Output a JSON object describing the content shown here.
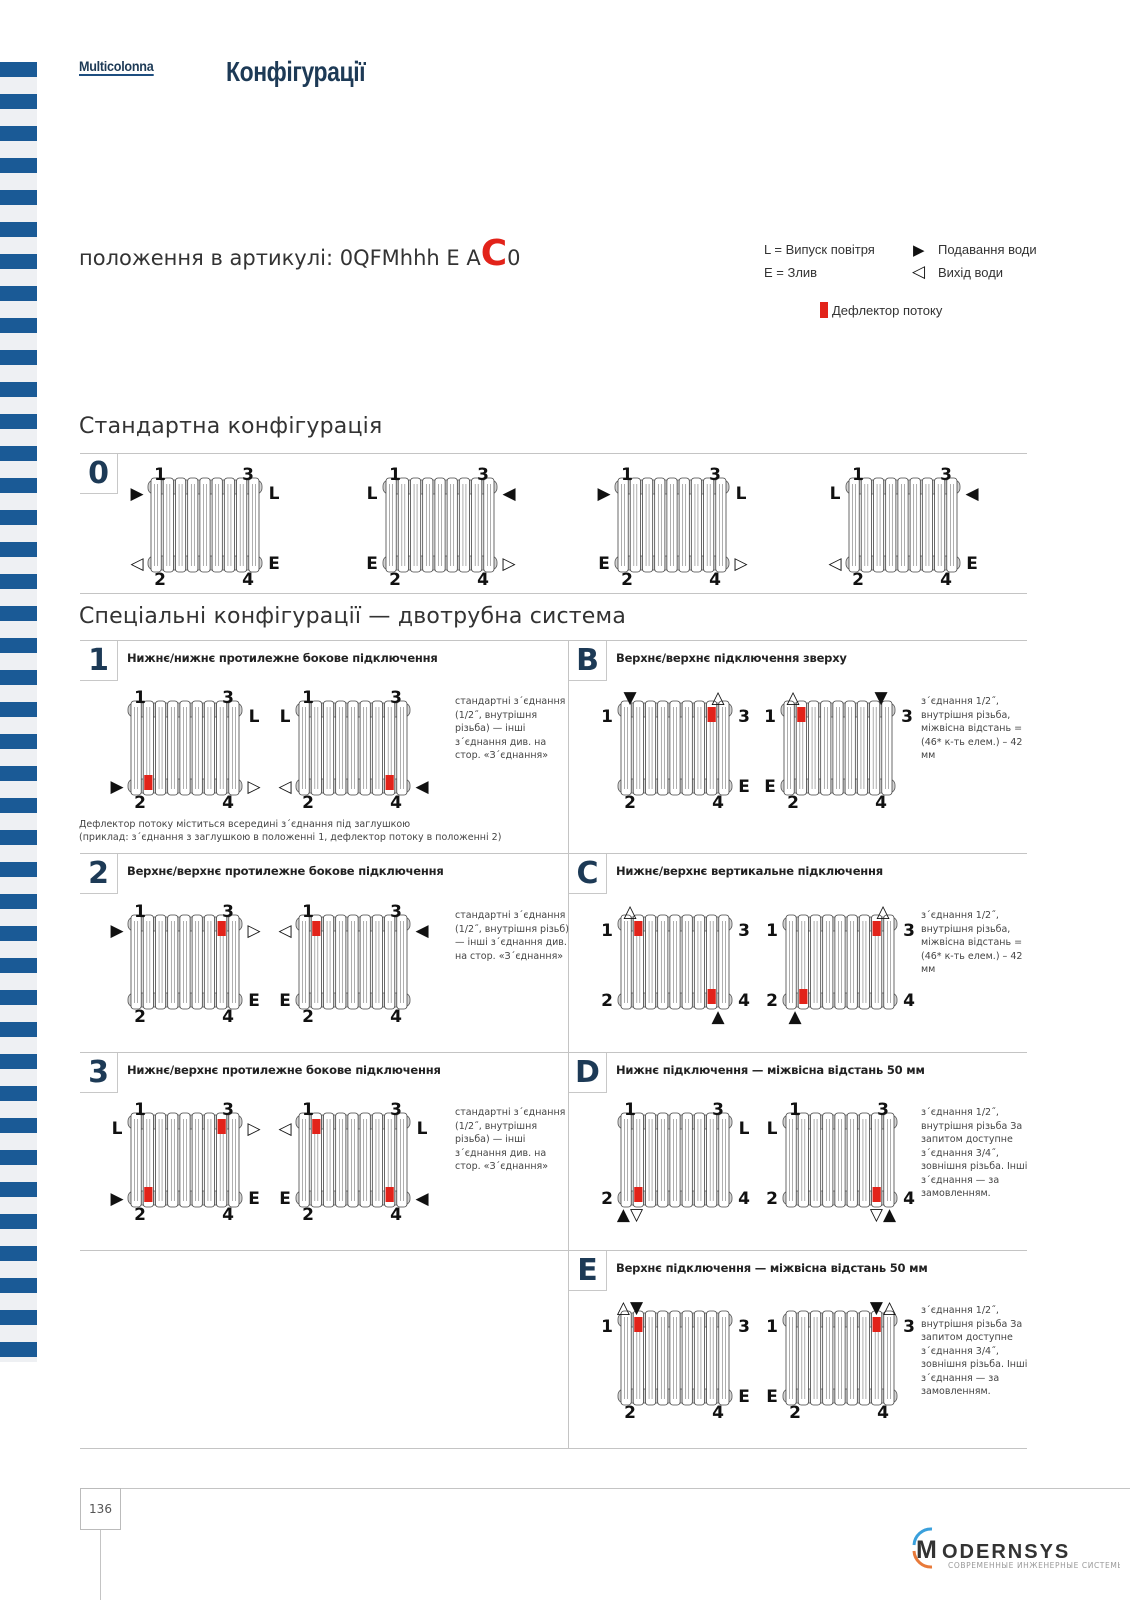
{
  "header": {
    "brand": "Multicolonna",
    "title": "Конфігурації"
  },
  "article": {
    "prefix": "положення в артикулі: 0QFMhhh E A",
    "highlight": "C",
    "suffix": "0",
    "highlight_color": "#e2231a"
  },
  "legend": {
    "air_vent": "L = Випуск повітря",
    "drain": "E = Злив",
    "water_in_icon": "▶",
    "water_in": "Подавання води",
    "water_out_icon": "◁",
    "water_out": "Вихід води",
    "deflector": "Дефлектор потоку",
    "deflector_color": "#e2231a"
  },
  "standard": {
    "heading": "Стандартна конфігурація",
    "code": "0"
  },
  "special": {
    "heading": "Спеціальні конфігурації — двотрубна система"
  },
  "sections": [
    {
      "code": "1",
      "title": "Нижнє/нижнє протилежне бокове підключення",
      "note": "стандартні з΄єднання (1/2˝, внутрішня різьба) — інші з΄єднання див. на стор. «З΄єднання»",
      "footnote": [
        "Дефлектор потоку міститься всередині з΄єднання під заглушкою",
        "(приклад: з΄єднання з заглушкою в положенні 1, дефлектор потоку в положенні 2)"
      ]
    },
    {
      "code": "B",
      "title": "Верхнє/верхнє підключення зверху",
      "note": "з΄єднання 1/2˝, внутрішня різьба, міжвісна відстань = (46* к-ть елем.) – 42 мм"
    },
    {
      "code": "2",
      "title": "Верхнє/верхнє протилежне бокове підключення",
      "note": "стандартні з΄єднання (1/2˝, внутрішня різьб) — інші з΄єднання див. на стор. «З΄єднання»"
    },
    {
      "code": "C",
      "title": "Нижнє/верхнє вертикальне підключення",
      "note": "з΄єднання 1/2˝, внутрішня різьба, міжвісна відстань = (46* к-ть елем.) – 42 мм"
    },
    {
      "code": "3",
      "title": "Нижнє/верхнє протилежне бокове підключення",
      "note": "стандартні з΄єднання (1/2˝, внутрішня різьба) — інші з΄єднання див. на стор. «З΄єднання»"
    },
    {
      "code": "D",
      "title": "Нижнє підключення — міжвісна відстань 50 мм",
      "note": "з΄єднання 1/2˝, внутрішня різьба За запитом доступне з΄єднання 3/4˝, зовнішня різьба. Інші з΄єднання — за замовленням."
    },
    {
      "code": "E",
      "title": "Верхнє підключення — міжвісна відстань 50 мм",
      "note": "з΄єднання 1/2˝, внутрішня різьба За запитом доступне з΄єднання 3/4˝, зовнішня різьба. Інші з΄єднання — за замовленням."
    }
  ],
  "diagrams": [
    {
      "group": "0",
      "labels": {
        "above-l": "1",
        "above-r": "3",
        "left-t": "▶",
        "right-t": "L",
        "left-b": "◁",
        "below-l": "2",
        "below-r": "4",
        "right-b": "E"
      },
      "deflectors": []
    },
    {
      "group": "0",
      "labels": {
        "above-l": "1",
        "above-r": "3",
        "left-t": "L",
        "right-t": "◀",
        "left-b": "E",
        "below-l": "2",
        "below-r": "4",
        "right-b": "▷"
      },
      "deflectors": []
    },
    {
      "group": "0",
      "labels": {
        "above-l": "1",
        "above-r": "3",
        "left-t": "▶",
        "right-t": "L",
        "left-b": "E",
        "below-l": "2",
        "below-r": "4",
        "right-b": "▷"
      },
      "deflectors": []
    },
    {
      "group": "0",
      "labels": {
        "above-l": "1",
        "above-r": "3",
        "left-t": "L",
        "right-t": "◀",
        "left-b": "◁",
        "below-l": "2",
        "below-r": "4",
        "right-b": "E"
      },
      "deflectors": []
    },
    {
      "group": "1",
      "labels": {
        "above-l": "1",
        "above-r": "3",
        "right-t": "L",
        "left-b": "▶",
        "below-l": "2",
        "below-r": "4",
        "right-b": "▷"
      },
      "deflectors": [
        "l-bottom"
      ]
    },
    {
      "group": "1",
      "labels": {
        "above-l": "1",
        "above-r": "3",
        "left-t": "L",
        "left-b": "◁",
        "below-l": "2",
        "below-r": "4",
        "right-b": "◀"
      },
      "deflectors": [
        "r-bottom"
      ]
    },
    {
      "group": "B",
      "labels": {
        "above-l": "▼",
        "above-r": "△",
        "left-t": "1",
        "right-t": "3",
        "below-l": "2",
        "below-r": "4",
        "right-b": "E"
      },
      "deflectors": [
        "r-top"
      ]
    },
    {
      "group": "B",
      "labels": {
        "above-l": "△",
        "above-r": "▼",
        "left-t": "1",
        "right-t": "3",
        "left-b": "E",
        "below-l": "2",
        "below-r": "4"
      },
      "deflectors": [
        "l-top"
      ]
    },
    {
      "group": "2",
      "labels": {
        "above-l": "1",
        "above-r": "3",
        "left-t": "▶",
        "right-t": "▷",
        "below-l": "2",
        "below-r": "4",
        "right-b": "E"
      },
      "deflectors": [
        "r-top"
      ]
    },
    {
      "group": "2",
      "labels": {
        "above-l": "1",
        "above-r": "3",
        "left-t": "◁",
        "right-t": "◀",
        "left-b": "E",
        "below-l": "2",
        "below-r": "4"
      },
      "deflectors": [
        "l-top"
      ]
    },
    {
      "group": "C",
      "labels": {
        "above-l": "△",
        "left-t": "1",
        "right-t": "3",
        "left-b": "2",
        "right-b": "4",
        "below-r": "▲"
      },
      "deflectors": [
        "l-top",
        "r-bottom"
      ]
    },
    {
      "group": "C",
      "labels": {
        "above-r": "△",
        "left-t": "1",
        "right-t": "3",
        "left-b": "2",
        "right-b": "4",
        "below-l": "▲"
      },
      "deflectors": [
        "r-top",
        "l-bottom"
      ]
    },
    {
      "group": "3",
      "labels": {
        "above-l": "1",
        "above-r": "3",
        "left-t": "L",
        "right-t": "▷",
        "left-b": "▶",
        "below-l": "2",
        "below-r": "4",
        "right-b": "E"
      },
      "deflectors": [
        "r-top",
        "l-bottom"
      ]
    },
    {
      "group": "3",
      "labels": {
        "above-l": "1",
        "above-r": "3",
        "left-t": "◁",
        "right-t": "L",
        "left-b": "E",
        "below-l": "2",
        "below-r": "4",
        "right-b": "◀"
      },
      "deflectors": [
        "l-top",
        "r-bottom"
      ]
    },
    {
      "group": "D",
      "labels": {
        "above-l": "1",
        "above-r": "3",
        "right-t": "L",
        "left-b": "2",
        "right-b": "4",
        "below-l": "▲▽"
      },
      "deflectors": [
        "l-bottom"
      ]
    },
    {
      "group": "D",
      "labels": {
        "above-l": "1",
        "above-r": "3",
        "left-t": "L",
        "left-b": "2",
        "right-b": "4",
        "below-r": "▽▲"
      },
      "deflectors": [
        "r-bottom"
      ]
    },
    {
      "group": "E",
      "labels": {
        "above-l": "△▼",
        "left-t": "1",
        "right-t": "3",
        "right-b": "E",
        "below-l": "2",
        "below-r": "4"
      },
      "deflectors": [
        "l-top"
      ]
    },
    {
      "group": "E",
      "labels": {
        "above-r": "▼△",
        "left-t": "1",
        "right-t": "3",
        "left-b": "E",
        "below-l": "2",
        "below-r": "4"
      },
      "deflectors": [
        "r-top"
      ]
    }
  ],
  "footer": {
    "page": "136",
    "logo_text": "MODERNSYS",
    "logo_tagline": "СОВРЕМЕННЫЕ ИНЖЕНЕРНЫЕ СИСТЕМЫ"
  }
}
